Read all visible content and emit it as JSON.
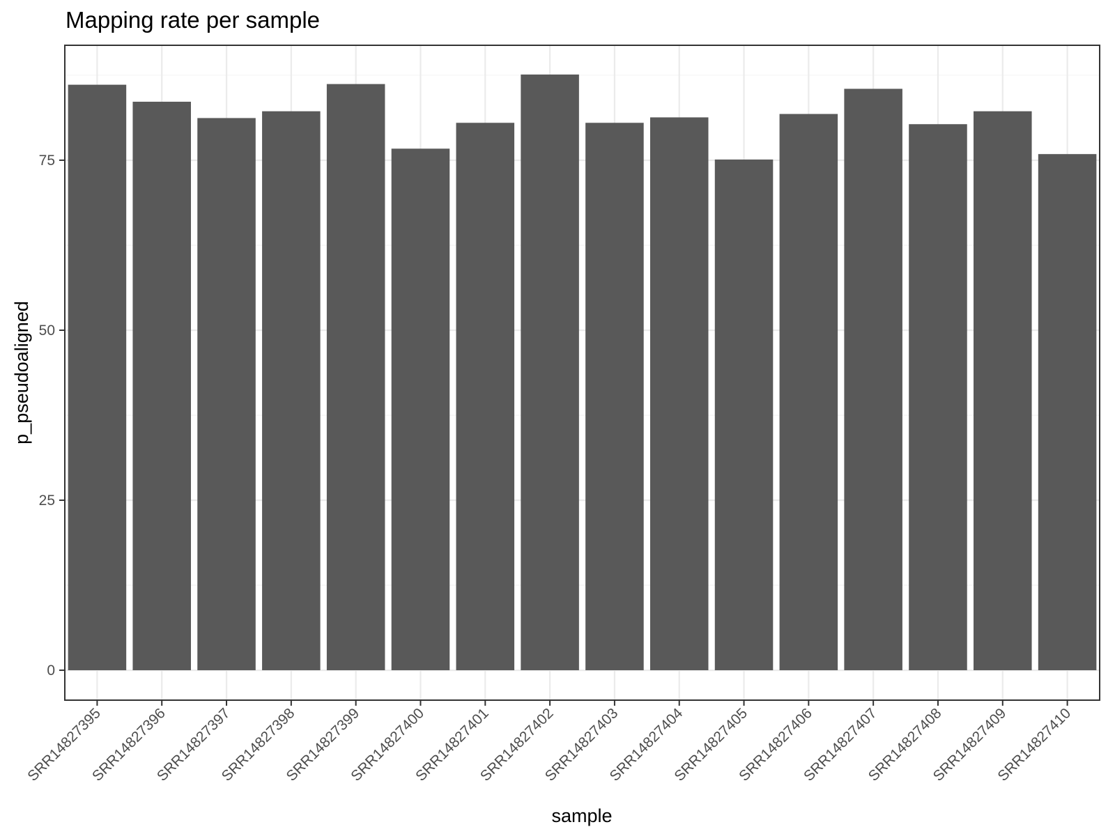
{
  "chart_data": {
    "type": "bar",
    "title": "Mapping rate per sample",
    "xlabel": "sample",
    "ylabel": "p_pseudoaligned",
    "categories": [
      "SRR14827395",
      "SRR14827396",
      "SRR14827397",
      "SRR14827398",
      "SRR14827399",
      "SRR14827400",
      "SRR14827401",
      "SRR14827402",
      "SRR14827403",
      "SRR14827404",
      "SRR14827405",
      "SRR14827406",
      "SRR14827407",
      "SRR14827408",
      "SRR14827409",
      "SRR14827410"
    ],
    "values": [
      86.1,
      83.6,
      81.2,
      82.2,
      86.2,
      76.7,
      80.5,
      87.6,
      80.5,
      81.3,
      75.1,
      81.8,
      85.5,
      80.3,
      82.2,
      75.9
    ],
    "ylim": [
      -4.4,
      91.9
    ],
    "yticks": [
      0,
      25,
      50,
      75
    ],
    "grid": true,
    "legend": "none",
    "colors": {
      "bar": "#595959",
      "grid_major": "#ebebeb",
      "grid_minor": "#f4f4f4",
      "panel_border": "#333333",
      "axis_text": "#4d4d4d",
      "axis_title": "#000000"
    }
  }
}
